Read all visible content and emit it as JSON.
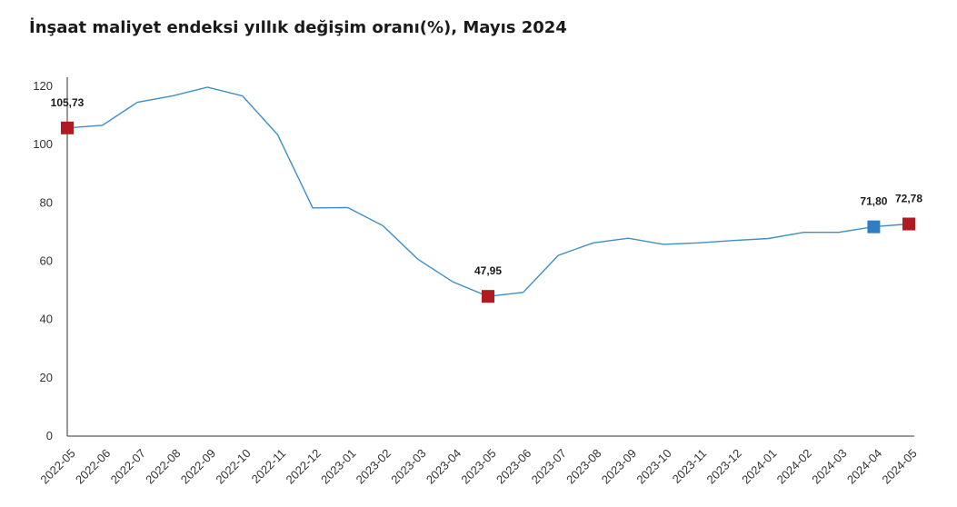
{
  "title": "İnşaat maliyet endeksi yıllık değişim oranı(%), Mayıs 2024",
  "chart_data": {
    "type": "line",
    "title": "İnşaat maliyet endeksi yıllık değişim oranı(%), Mayıs 2024",
    "xlabel": "",
    "ylabel": "",
    "ylim": [
      0,
      120
    ],
    "yticks": [
      0,
      20,
      40,
      60,
      80,
      100,
      120
    ],
    "grid": false,
    "categories": [
      "2022-05",
      "2022-06",
      "2022-07",
      "2022-08",
      "2022-09",
      "2022-10",
      "2022-11",
      "2022-12",
      "2023-01",
      "2023-02",
      "2023-03",
      "2023-04",
      "2023-05",
      "2023-06",
      "2023-07",
      "2023-08",
      "2023-09",
      "2023-10",
      "2023-11",
      "2023-12",
      "2024-01",
      "2024-02",
      "2024-03",
      "2024-04",
      "2024-05"
    ],
    "series": [
      {
        "values": [
          105.73,
          106.6,
          114.5,
          116.7,
          119.7,
          116.7,
          103.4,
          78.3,
          78.4,
          72.2,
          60.7,
          52.9,
          47.95,
          49.3,
          62.0,
          66.3,
          67.9,
          65.8,
          66.3,
          67.1,
          67.8,
          69.9,
          69.9,
          71.8,
          72.78
        ],
        "color": "#3f8fc4"
      }
    ],
    "markers": [
      {
        "index": 0,
        "color": "#b11a20",
        "label": "105,73"
      },
      {
        "index": 12,
        "color": "#b11a20",
        "label": "47,95"
      },
      {
        "index": 23,
        "color": "#2f7ec4",
        "label": "71,80"
      },
      {
        "index": 24,
        "color": "#b11a20",
        "label": "72,78"
      }
    ]
  }
}
